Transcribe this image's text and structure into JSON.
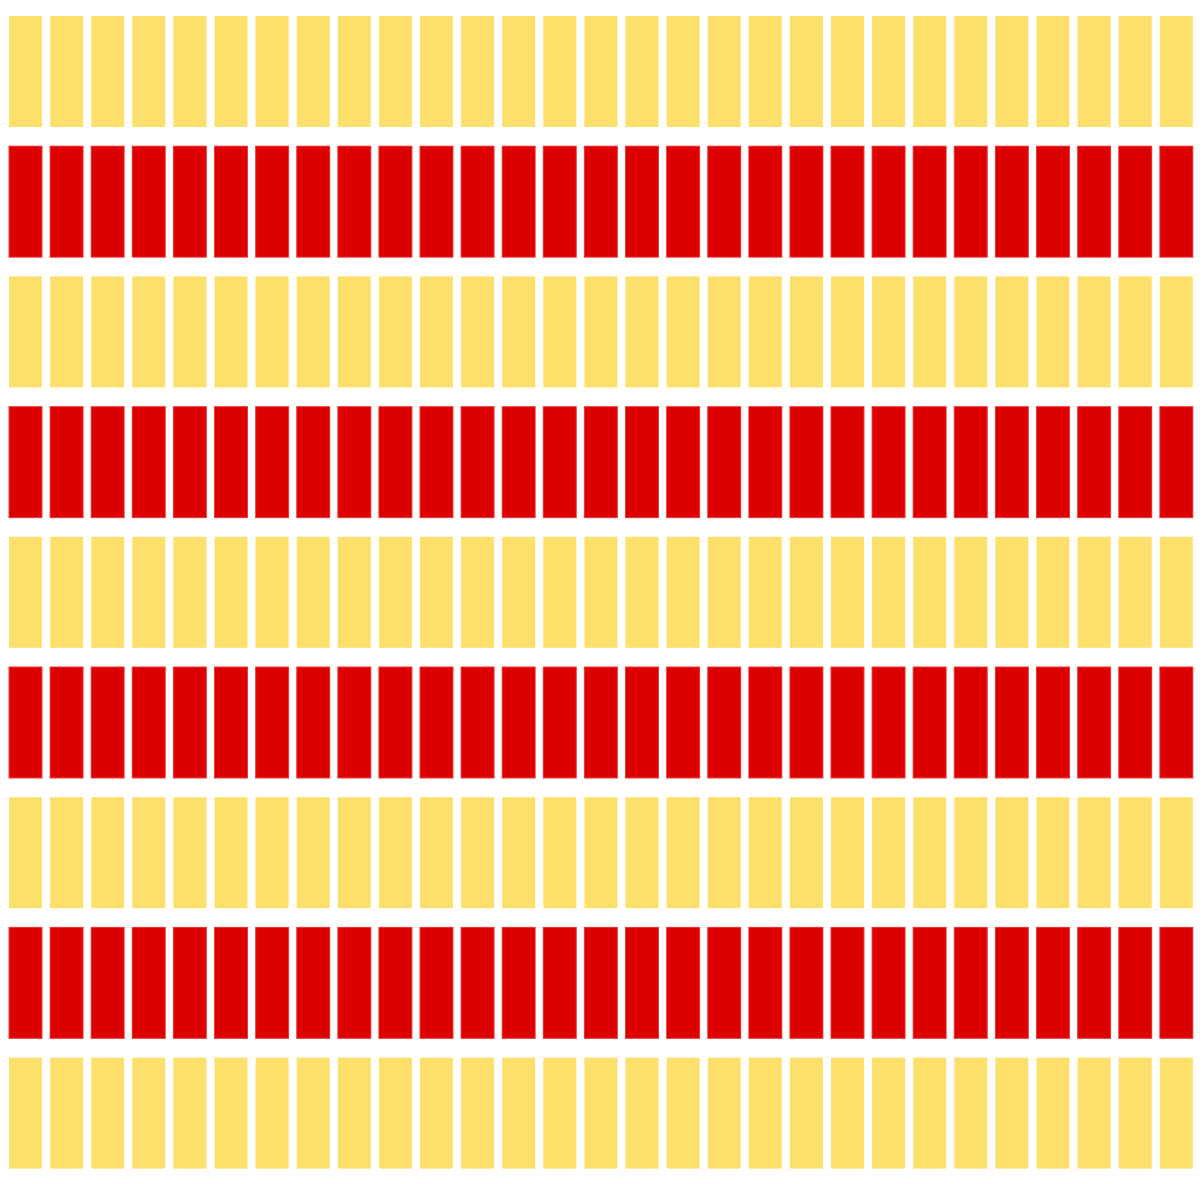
{
  "pattern": {
    "rows": 9,
    "columns": 29,
    "row_colors": [
      "yellow",
      "red",
      "yellow",
      "red",
      "yellow",
      "red",
      "yellow",
      "red",
      "yellow"
    ]
  },
  "colors": {
    "background": "#ffffff",
    "yellow": "#fde06b",
    "red": "#dd0000",
    "red_edge": "#ef3a3a"
  }
}
